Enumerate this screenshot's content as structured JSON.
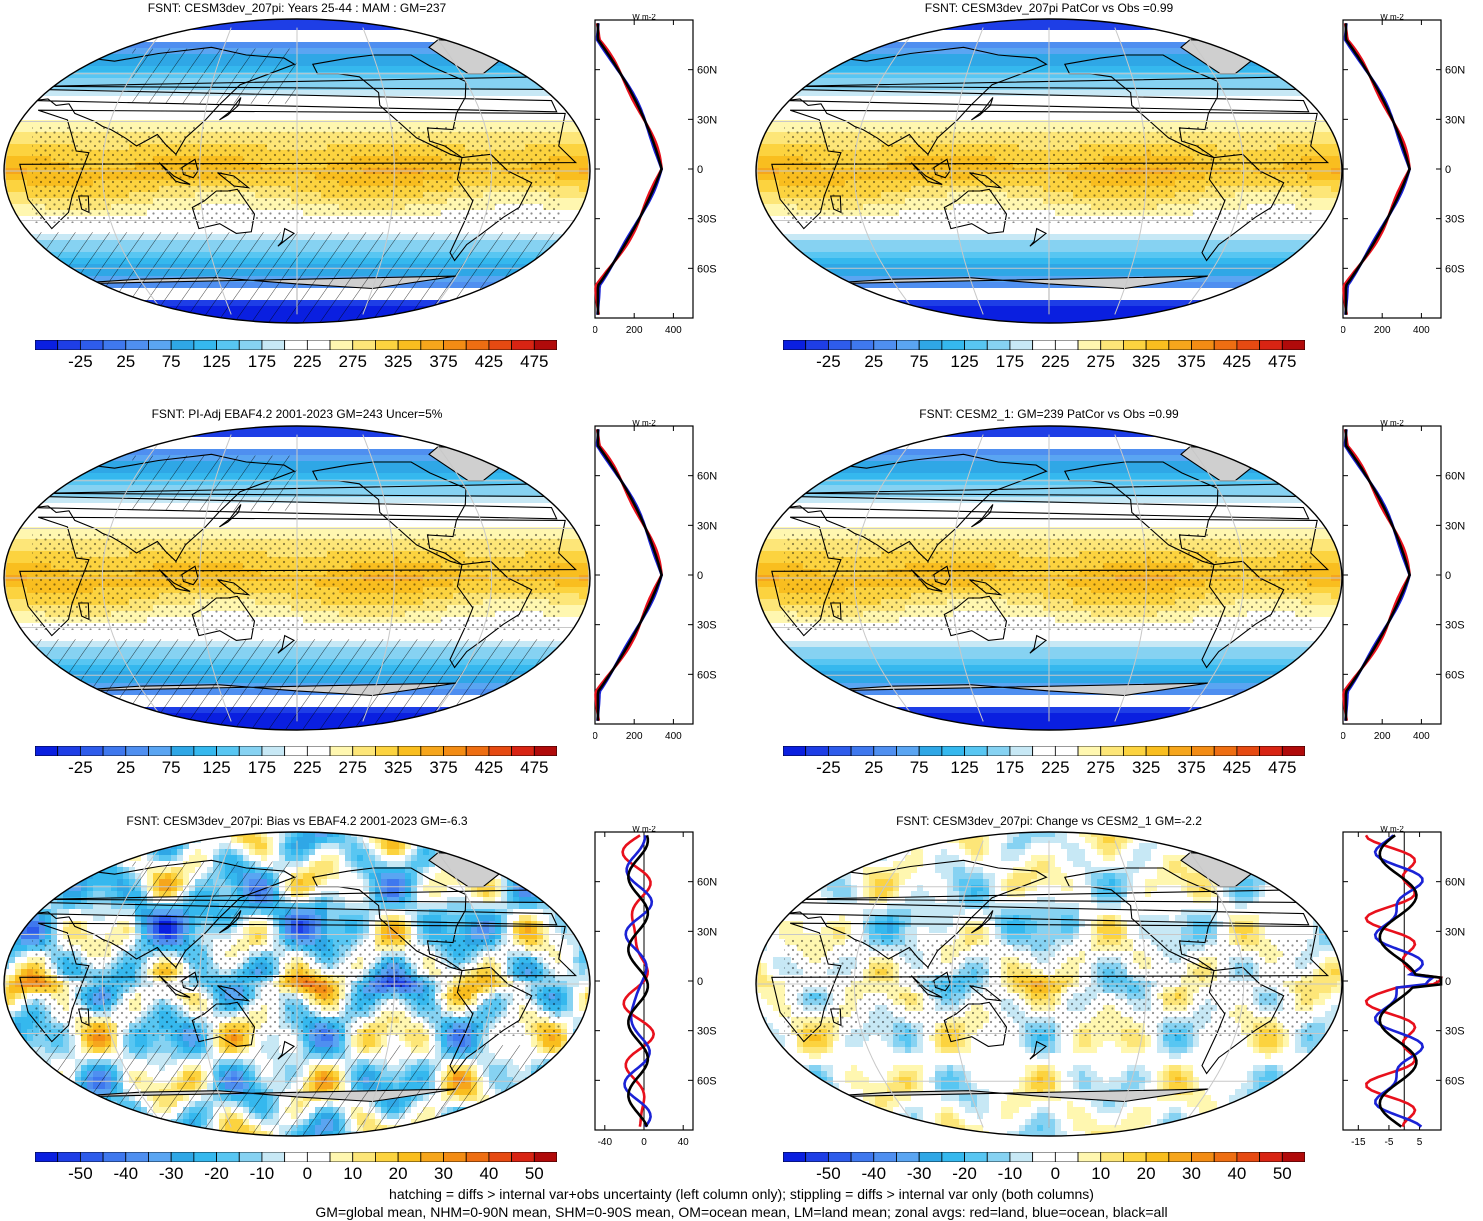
{
  "panels": [
    {
      "id": "p1",
      "title": "FSNT: CESM3dev_207pi: Years 25-44 : MAM : GM=237",
      "field_type": "mean",
      "hatching": true,
      "colorbar": {
        "levels": [
          -50,
          -25,
          0,
          25,
          50,
          75,
          100,
          125,
          150,
          175,
          200,
          225,
          250,
          275,
          300,
          325,
          350,
          375,
          400,
          425,
          450,
          475,
          500
        ],
        "labels": [
          "-25",
          "25",
          "75",
          "125",
          "175",
          "225",
          "275",
          "325",
          "375",
          "425",
          "475"
        ]
      },
      "zonal": {
        "units": "W m-2",
        "x_ticks": [
          "0",
          "200",
          "400"
        ],
        "xlim": [
          0,
          500
        ],
        "y_ticks": [
          "60N",
          "30N",
          "0",
          "30S",
          "60S"
        ]
      }
    },
    {
      "id": "p2",
      "title": "FSNT: CESM3dev_207pi PatCor vs Obs =0.99",
      "field_type": "mean",
      "hatching": false,
      "colorbar": {
        "levels": [
          -50,
          -25,
          0,
          25,
          50,
          75,
          100,
          125,
          150,
          175,
          200,
          225,
          250,
          275,
          300,
          325,
          350,
          375,
          400,
          425,
          450,
          475,
          500
        ],
        "labels": [
          "-25",
          "25",
          "75",
          "125",
          "175",
          "225",
          "275",
          "325",
          "375",
          "425",
          "475"
        ]
      },
      "zonal": {
        "units": "W m-2",
        "x_ticks": [
          "0",
          "200",
          "400"
        ],
        "xlim": [
          0,
          500
        ],
        "y_ticks": [
          "60N",
          "30N",
          "0",
          "30S",
          "60S"
        ]
      }
    },
    {
      "id": "p3",
      "title": "FSNT: PI-Adj EBAF4.2 2001-2023 GM=243 Uncer=5%",
      "field_type": "mean",
      "hatching": true,
      "colorbar": {
        "levels": [
          -50,
          -25,
          0,
          25,
          50,
          75,
          100,
          125,
          150,
          175,
          200,
          225,
          250,
          275,
          300,
          325,
          350,
          375,
          400,
          425,
          450,
          475,
          500
        ],
        "labels": [
          "-25",
          "25",
          "75",
          "125",
          "175",
          "225",
          "275",
          "325",
          "375",
          "425",
          "475"
        ]
      },
      "zonal": {
        "units": "W m-2",
        "x_ticks": [
          "0",
          "200",
          "400"
        ],
        "xlim": [
          0,
          500
        ],
        "y_ticks": [
          "60N",
          "30N",
          "0",
          "30S",
          "60S"
        ]
      }
    },
    {
      "id": "p4",
      "title": "FSNT: CESM2_1: GM=239 PatCor vs Obs =0.99",
      "field_type": "mean",
      "hatching": false,
      "colorbar": {
        "levels": [
          -50,
          -25,
          0,
          25,
          50,
          75,
          100,
          125,
          150,
          175,
          200,
          225,
          250,
          275,
          300,
          325,
          350,
          375,
          400,
          425,
          450,
          475,
          500
        ],
        "labels": [
          "-25",
          "25",
          "75",
          "125",
          "175",
          "225",
          "275",
          "325",
          "375",
          "425",
          "475"
        ]
      },
      "zonal": {
        "units": "W m-2",
        "x_ticks": [
          "0",
          "200",
          "400"
        ],
        "xlim": [
          0,
          500
        ],
        "y_ticks": [
          "60N",
          "30N",
          "0",
          "30S",
          "60S"
        ]
      }
    },
    {
      "id": "p5",
      "title": "FSNT: CESM3dev_207pi: Bias vs EBAF4.2 2001-2023 GM=-6.3",
      "field_type": "diff",
      "hatching": true,
      "colorbar": {
        "levels": [
          -55,
          -50,
          -45,
          -40,
          -35,
          -30,
          -25,
          -20,
          -15,
          -10,
          -5,
          0,
          5,
          10,
          15,
          20,
          25,
          30,
          35,
          40,
          45,
          50,
          55
        ],
        "labels": [
          "-50",
          "-40",
          "-30",
          "-20",
          "-10",
          "0",
          "10",
          "20",
          "30",
          "40",
          "50"
        ]
      },
      "zonal": {
        "units": "W m-2",
        "x_ticks": [
          "-40",
          "0",
          "40"
        ],
        "xlim": [
          -50,
          50
        ],
        "y_ticks": [
          "60N",
          "30N",
          "0",
          "30S",
          "60S"
        ]
      }
    },
    {
      "id": "p6",
      "title": "FSNT: CESM3dev_207pi: Change vs CESM2_1 GM=-2.2",
      "field_type": "change",
      "hatching": false,
      "colorbar": {
        "levels": [
          -55,
          -50,
          -45,
          -40,
          -35,
          -30,
          -25,
          -20,
          -15,
          -10,
          -5,
          0,
          5,
          10,
          15,
          20,
          25,
          30,
          35,
          40,
          45,
          50,
          55
        ],
        "labels": [
          "-50",
          "-40",
          "-30",
          "-20",
          "-10",
          "0",
          "10",
          "20",
          "30",
          "40",
          "50"
        ]
      },
      "zonal": {
        "units": "W m-2",
        "x_ticks": [
          "-15",
          "-5",
          "5"
        ],
        "xlim": [
          -20,
          12
        ],
        "y_ticks": [
          "60N",
          "30N",
          "0",
          "30S",
          "60S"
        ]
      }
    }
  ],
  "colors": {
    "palette": [
      "#0a1fe0",
      "#1e3ee6",
      "#2e5ceb",
      "#3f78ee",
      "#4f8ff0",
      "#5aa5f2",
      "#2fa7e6",
      "#35b8ee",
      "#58c6f2",
      "#86d2f2",
      "#c7e8f5",
      "#ffffff",
      "#ffffff",
      "#fff7b0",
      "#fde678",
      "#fcd33f",
      "#f9be1f",
      "#f6a61c",
      "#f38c14",
      "#ee6e12",
      "#e64a12",
      "#d82413",
      "#b00a0a"
    ],
    "land_gray": "#cfcfcf",
    "zonal_land": "#e8101c",
    "zonal_ocean": "#1a22d6",
    "zonal_all": "#000000"
  },
  "footer": {
    "line1": "hatching = diffs > internal var+obs uncertainty (left column only); stippling = diffs > internal var only (both columns)",
    "line2": "GM=global mean, NHM=0-90N mean, SHM=0-90S mean, OM=ocean mean, LM=land mean; zonal avgs: red=land, blue=ocean, black=all"
  }
}
